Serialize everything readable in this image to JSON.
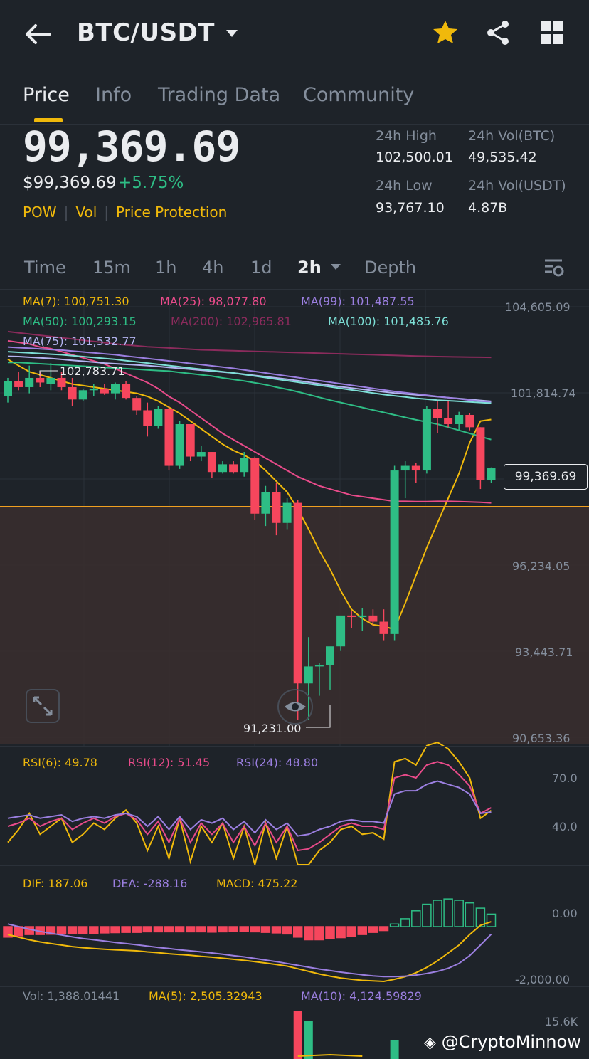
{
  "header": {
    "pair": "BTC/USDT",
    "icons": {
      "back": "back-arrow-icon",
      "dropdown": "chevron-down-icon",
      "favorite": "star-icon",
      "share": "share-icon",
      "more": "grid-icon"
    },
    "favorite_color": "#f0b90b"
  },
  "tabs": [
    {
      "label": "Price",
      "active": true
    },
    {
      "label": "Info"
    },
    {
      "label": "Trading Data"
    },
    {
      "label": "Community"
    }
  ],
  "ticker": {
    "last_price": "99,369.69",
    "fiat_price": "$99,369.69",
    "change_pct": "+5.75%",
    "tags": [
      "POW",
      "Vol",
      "Price Protection"
    ],
    "high_label": "24h High",
    "high_value": "102,500.01",
    "vol_btc_label": "24h Vol(BTC)",
    "vol_btc_value": "49,535.42",
    "low_label": "24h Low",
    "low_value": "93,767.10",
    "vol_usdt_label": "24h Vol(USDT)",
    "vol_usdt_value": "4.87B"
  },
  "timeframes": [
    {
      "label": "Time"
    },
    {
      "label": "15m"
    },
    {
      "label": "1h"
    },
    {
      "label": "4h"
    },
    {
      "label": "1d"
    },
    {
      "label": "2h",
      "active": true
    },
    {
      "label": "Depth"
    }
  ],
  "ma_legend": {
    "ma7": "MA(7): 100,751.30",
    "ma25": "MA(25): 98,077.80",
    "ma99": "MA(99): 101,487.55",
    "ma50": "MA(50): 100,293.15",
    "ma200": "MA(200): 102,965.81",
    "ma100": "MA(100): 101,485.76",
    "ma75": "MA(75): 101,532.77"
  },
  "price_axis": [
    "104,605.09",
    "101,814.74",
    "96,234.05",
    "93,443.71",
    "90,653.36"
  ],
  "chart_data": {
    "type": "candlestick",
    "interval": "2h",
    "annotations": {
      "high": "102,783.71",
      "low": "91,231.00",
      "last_price": "99,369.69"
    },
    "ylim": [
      90653.36,
      104605.09
    ],
    "candles": [
      {
        "o": 101700,
        "h": 102300,
        "l": 101500,
        "c": 102200
      },
      {
        "o": 102200,
        "h": 102500,
        "l": 101900,
        "c": 102000
      },
      {
        "o": 102000,
        "h": 102700,
        "l": 101800,
        "c": 102300
      },
      {
        "o": 102300,
        "h": 102500,
        "l": 102000,
        "c": 102150
      },
      {
        "o": 102100,
        "h": 102784,
        "l": 101900,
        "c": 102300
      },
      {
        "o": 102300,
        "h": 102500,
        "l": 101900,
        "c": 102000
      },
      {
        "o": 102000,
        "h": 102300,
        "l": 101400,
        "c": 101600
      },
      {
        "o": 101600,
        "h": 101950,
        "l": 101550,
        "c": 101900
      },
      {
        "o": 101900,
        "h": 102100,
        "l": 101700,
        "c": 101950
      },
      {
        "o": 101950,
        "h": 102100,
        "l": 101750,
        "c": 101800
      },
      {
        "o": 101800,
        "h": 102150,
        "l": 101600,
        "c": 102100
      },
      {
        "o": 102100,
        "h": 102200,
        "l": 101600,
        "c": 101650
      },
      {
        "o": 101650,
        "h": 101700,
        "l": 101100,
        "c": 101250
      },
      {
        "o": 101250,
        "h": 101500,
        "l": 100400,
        "c": 100750
      },
      {
        "o": 100750,
        "h": 101400,
        "l": 100650,
        "c": 101300
      },
      {
        "o": 101300,
        "h": 101400,
        "l": 99300,
        "c": 99450
      },
      {
        "o": 99450,
        "h": 100900,
        "l": 99350,
        "c": 100800
      },
      {
        "o": 100800,
        "h": 100800,
        "l": 99600,
        "c": 99750
      },
      {
        "o": 99750,
        "h": 100100,
        "l": 99600,
        "c": 99900
      },
      {
        "o": 99900,
        "h": 99900,
        "l": 99050,
        "c": 99250
      },
      {
        "o": 99250,
        "h": 99600,
        "l": 99200,
        "c": 99500
      },
      {
        "o": 99500,
        "h": 99600,
        "l": 99200,
        "c": 99250
      },
      {
        "o": 99250,
        "h": 99900,
        "l": 99100,
        "c": 99700
      },
      {
        "o": 99700,
        "h": 99750,
        "l": 97700,
        "c": 97900
      },
      {
        "o": 97900,
        "h": 98800,
        "l": 97500,
        "c": 98600
      },
      {
        "o": 98600,
        "h": 98900,
        "l": 97200,
        "c": 97600
      },
      {
        "o": 97600,
        "h": 98400,
        "l": 97400,
        "c": 98250
      },
      {
        "o": 98250,
        "h": 98350,
        "l": 91231,
        "c": 92400
      },
      {
        "o": 92400,
        "h": 93900,
        "l": 91231,
        "c": 92950
      },
      {
        "o": 92950,
        "h": 93050,
        "l": 92000,
        "c": 93000
      },
      {
        "o": 93000,
        "h": 93550,
        "l": 92200,
        "c": 93600
      },
      {
        "o": 93600,
        "h": 94500,
        "l": 93450,
        "c": 94600
      },
      {
        "o": 94600,
        "h": 94750,
        "l": 94200,
        "c": 94550
      },
      {
        "o": 94550,
        "h": 94850,
        "l": 94100,
        "c": 94600
      },
      {
        "o": 94600,
        "h": 94800,
        "l": 94250,
        "c": 94400
      },
      {
        "o": 94400,
        "h": 94800,
        "l": 93800,
        "c": 94000
      },
      {
        "o": 94000,
        "h": 99450,
        "l": 93800,
        "c": 99300
      },
      {
        "o": 99300,
        "h": 99600,
        "l": 98400,
        "c": 99450
      },
      {
        "o": 99450,
        "h": 99550,
        "l": 98900,
        "c": 99300
      },
      {
        "o": 99300,
        "h": 101400,
        "l": 99200,
        "c": 101300
      },
      {
        "o": 101300,
        "h": 101550,
        "l": 100500,
        "c": 101000
      },
      {
        "o": 101000,
        "h": 101550,
        "l": 100700,
        "c": 100800
      },
      {
        "o": 100800,
        "h": 101200,
        "l": 100600,
        "c": 101100
      },
      {
        "o": 101100,
        "h": 101150,
        "l": 100600,
        "c": 100700
      },
      {
        "o": 100700,
        "h": 100700,
        "l": 98700,
        "c": 99000
      },
      {
        "o": 99000,
        "h": 99400,
        "l": 98900,
        "c": 99370
      }
    ],
    "lines": {
      "ma7": {
        "color": "#f0b90b",
        "values": [
          102900,
          102700,
          102500,
          102400,
          102300,
          102200,
          102100,
          102050,
          102000,
          101950,
          101900,
          101850,
          101800,
          101700,
          101550,
          101350,
          101150,
          100900,
          100650,
          100400,
          100150,
          99950,
          99800,
          99600,
          99300,
          98950,
          98600,
          98050,
          97400,
          96700,
          96100,
          95400,
          94800,
          94500,
          94300,
          94250,
          94150,
          95000,
          95900,
          96800,
          97600,
          98400,
          99200,
          100200,
          100900,
          100950
        ]
      },
      "ma25": {
        "color": "#e84b8a",
        "values": [
          103500,
          103450,
          103400,
          103300,
          103250,
          103150,
          103050,
          102950,
          102850,
          102750,
          102600,
          102450,
          102300,
          102150,
          101950,
          101700,
          101500,
          101250,
          101000,
          100750,
          100500,
          100300,
          100100,
          99900,
          99700,
          99500,
          99300,
          99100,
          98950,
          98800,
          98700,
          98600,
          98500,
          98450,
          98400,
          98350,
          98300,
          98300,
          98290,
          98290,
          98300,
          98300,
          98290,
          98280,
          98270,
          98250
        ]
      },
      "ma50": {
        "color": "#2ebd85",
        "values": [
          102800,
          102800,
          102780,
          102760,
          102740,
          102720,
          102700,
          102680,
          102660,
          102640,
          102620,
          102600,
          102580,
          102560,
          102540,
          102520,
          102480,
          102440,
          102400,
          102360,
          102300,
          102250,
          102200,
          102140,
          102080,
          102000,
          101930,
          101850,
          101760,
          101670,
          101580,
          101500,
          101420,
          101340,
          101260,
          101180,
          101100,
          101020,
          100940,
          100870,
          100800,
          100700,
          100600,
          100500,
          100400,
          100300
        ]
      },
      "ma75": {
        "color": "#b4b4f0",
        "values": [
          103000,
          102990,
          102970,
          102950,
          102930,
          102900,
          102870,
          102840,
          102810,
          102780,
          102760,
          102740,
          102720,
          102700,
          102670,
          102640,
          102610,
          102580,
          102550,
          102520,
          102490,
          102460,
          102420,
          102380,
          102340,
          102300,
          102260,
          102210,
          102160,
          102110,
          102060,
          102010,
          101970,
          101930,
          101890,
          101850,
          101810,
          101780,
          101750,
          101720,
          101690,
          101660,
          101630,
          101600,
          101570,
          101540
        ]
      },
      "ma99": {
        "color": "#9b7fe0",
        "values": [
          103300,
          103280,
          103260,
          103240,
          103220,
          103200,
          103170,
          103140,
          103110,
          103080,
          103050,
          103010,
          102970,
          102930,
          102890,
          102850,
          102810,
          102770,
          102730,
          102690,
          102650,
          102610,
          102560,
          102510,
          102460,
          102410,
          102360,
          102310,
          102260,
          102210,
          102160,
          102110,
          102060,
          102010,
          101960,
          101910,
          101860,
          101820,
          101780,
          101740,
          101700,
          101660,
          101620,
          101580,
          101540,
          101500
        ]
      },
      "ma100": {
        "color": "#7ddfd6",
        "values": [
          103150,
          103130,
          103110,
          103090,
          103070,
          103050,
          103020,
          102990,
          102960,
          102930,
          102900,
          102860,
          102820,
          102780,
          102740,
          102700,
          102660,
          102620,
          102580,
          102540,
          102500,
          102460,
          102410,
          102360,
          102310,
          102260,
          102210,
          102160,
          102110,
          102060,
          102010,
          101960,
          101910,
          101860,
          101810,
          101760,
          101720,
          101680,
          101640,
          101610,
          101580,
          101560,
          101540,
          101520,
          101500,
          101480
        ]
      },
      "ma200": {
        "color": "#8b2b5c",
        "values": [
          103800,
          103760,
          103720,
          103680,
          103640,
          103600,
          103560,
          103520,
          103480,
          103440,
          103400,
          103370,
          103340,
          103310,
          103290,
          103270,
          103250,
          103230,
          103210,
          103200,
          103190,
          103180,
          103170,
          103160,
          103150,
          103140,
          103130,
          103120,
          103110,
          103100,
          103090,
          103080,
          103070,
          103060,
          103050,
          103040,
          103030,
          103020,
          103010,
          103000,
          102990,
          102985,
          102980,
          102975,
          102970,
          102965
        ]
      }
    },
    "rsi": {
      "legend": {
        "rsi6": "RSI(6): 49.78",
        "rsi12": "RSI(12): 51.45",
        "rsi24": "RSI(24): 48.80"
      },
      "axis": [
        "70.0",
        "40.0"
      ],
      "rsi6": [
        30,
        38,
        48,
        35,
        40,
        45,
        30,
        35,
        42,
        38,
        45,
        50,
        42,
        25,
        40,
        20,
        45,
        18,
        40,
        30,
        42,
        20,
        40,
        15,
        42,
        20,
        40,
        12,
        15,
        25,
        30,
        38,
        40,
        35,
        36,
        32,
        80,
        82,
        78,
        90,
        92,
        88,
        80,
        70,
        45,
        49.78
      ],
      "rsi12": [
        40,
        42,
        45,
        40,
        43,
        45,
        38,
        42,
        45,
        42,
        46,
        48,
        44,
        35,
        43,
        30,
        45,
        30,
        42,
        35,
        42,
        30,
        40,
        28,
        42,
        30,
        40,
        25,
        26,
        30,
        35,
        40,
        42,
        40,
        40,
        38,
        70,
        72,
        70,
        78,
        80,
        78,
        72,
        65,
        48,
        51.45
      ],
      "rsi24": [
        45,
        46,
        47,
        45,
        46,
        47,
        43,
        45,
        46,
        45,
        47,
        48,
        46,
        40,
        46,
        38,
        46,
        38,
        44,
        42,
        45,
        38,
        43,
        36,
        44,
        38,
        42,
        34,
        35,
        38,
        40,
        43,
        44,
        43,
        43,
        42,
        60,
        62,
        62,
        66,
        68,
        66,
        64,
        60,
        48,
        48.8
      ]
    },
    "macd": {
      "legend": {
        "dif": "DIF: 187.06",
        "dea": "DEA: -288.16",
        "macd": "MACD: 475.22"
      },
      "axis": [
        "0.00",
        "-2,000.00"
      ],
      "dif": [
        -300,
        -400,
        -500,
        -580,
        -640,
        -700,
        -760,
        -800,
        -830,
        -860,
        -880,
        -900,
        -920,
        -960,
        -990,
        -1030,
        -1060,
        -1090,
        -1130,
        -1160,
        -1200,
        -1240,
        -1280,
        -1330,
        -1380,
        -1440,
        -1500,
        -1600,
        -1700,
        -1800,
        -1880,
        -1950,
        -2000,
        -2040,
        -2060,
        -2080,
        -2000,
        -1900,
        -1750,
        -1550,
        -1300,
        -1000,
        -700,
        -300,
        50,
        187.06
      ],
      "dea": [
        100,
        0,
        -100,
        -180,
        -250,
        -320,
        -390,
        -450,
        -500,
        -550,
        -600,
        -640,
        -690,
        -740,
        -790,
        -830,
        -880,
        -920,
        -960,
        -1000,
        -1050,
        -1100,
        -1150,
        -1210,
        -1270,
        -1330,
        -1400,
        -1470,
        -1540,
        -1610,
        -1670,
        -1730,
        -1780,
        -1830,
        -1870,
        -1900,
        -1900,
        -1880,
        -1840,
        -1780,
        -1700,
        -1580,
        -1400,
        -1100,
        -700,
        -288.16
      ],
      "hist": [
        -400,
        -350,
        -300,
        -300,
        -290,
        -280,
        -270,
        -260,
        -250,
        -240,
        -230,
        -220,
        -220,
        -200,
        -200,
        -200,
        -200,
        -200,
        -200,
        -210,
        -200,
        -180,
        -190,
        -200,
        -220,
        -240,
        -280,
        -400,
        -500,
        -500,
        -450,
        -420,
        -380,
        -300,
        -220,
        -150,
        100,
        300,
        600,
        850,
        1000,
        1050,
        1000,
        900,
        700,
        475.22
      ]
    },
    "volume": {
      "legend": {
        "vol": "Vol: 1,388.01441",
        "ma5": "MA(5): 2,505.32943",
        "ma10": "MA(10): 4,124.59829"
      },
      "axis": "15.6K"
    }
  },
  "watermark": "@CryptoMinnow"
}
